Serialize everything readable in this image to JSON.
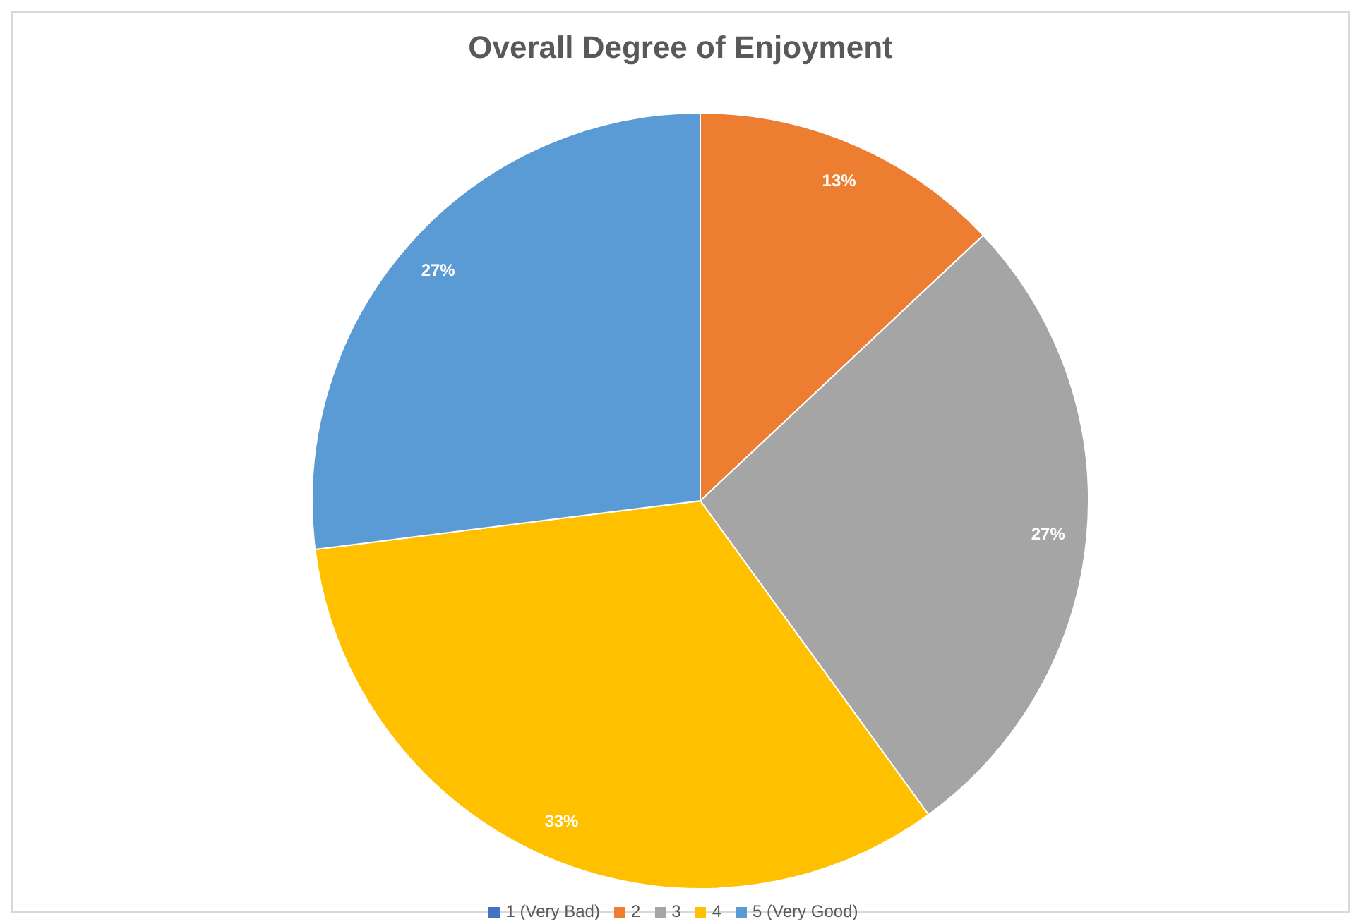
{
  "chart_data": {
    "type": "pie",
    "title": "Overall Degree of Enjoyment",
    "categories": [
      "1 (Very Bad)",
      "2",
      "3",
      "4",
      "5 (Very Good)"
    ],
    "values": [
      0,
      13,
      27,
      33,
      27
    ],
    "colors": [
      "#4472c4",
      "#ed7d31",
      "#a5a5a5",
      "#ffc000",
      "#5b9bd5"
    ],
    "value_labels": [
      null,
      "13%",
      "27%",
      "33%",
      "27%"
    ],
    "legend": "bottom"
  }
}
